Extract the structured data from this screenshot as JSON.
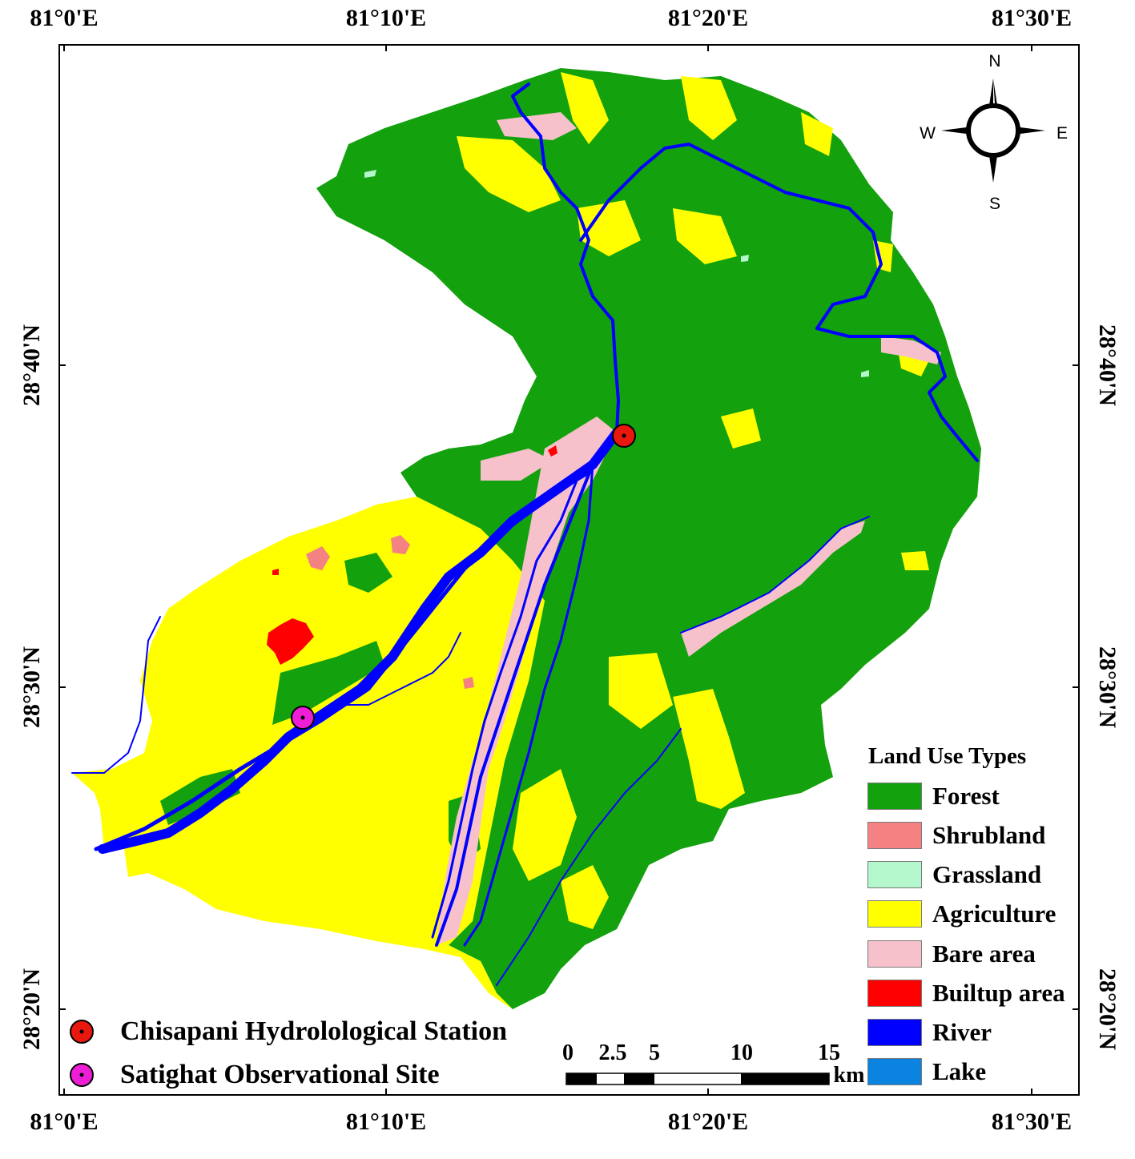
{
  "map": {
    "lon_labels": [
      "81°0'E",
      "81°10'E",
      "81°20'E",
      "81°30'E"
    ],
    "lat_labels": [
      "28°40'N",
      "28°30'N",
      "28°20'N"
    ]
  },
  "compass": {
    "n": "N",
    "s": "S",
    "e": "E",
    "w": "W"
  },
  "legend": {
    "title": "Land Use Types",
    "items": [
      {
        "label": "Forest",
        "color": "#13a10e"
      },
      {
        "label": "Shrubland",
        "color": "#f58282"
      },
      {
        "label": "Grassland",
        "color": "#b4f7cc"
      },
      {
        "label": "Agriculture",
        "color": "#ffff00"
      },
      {
        "label": "Bare area",
        "color": "#f7c1cc"
      },
      {
        "label": "Builtup area",
        "color": "#ff0000"
      },
      {
        "label": "River",
        "color": "#0000ff"
      },
      {
        "label": "Lake",
        "color": "#0a84e0"
      }
    ]
  },
  "sites": [
    {
      "label": "Chisapani Hydrolological Station",
      "color": "#e8180f"
    },
    {
      "label": "Satighat Observational Site",
      "color": "#ee1ed6"
    }
  ],
  "scale_bar": {
    "ticks": [
      "0",
      "2.5",
      "5",
      "10",
      "15"
    ],
    "unit": "km"
  }
}
